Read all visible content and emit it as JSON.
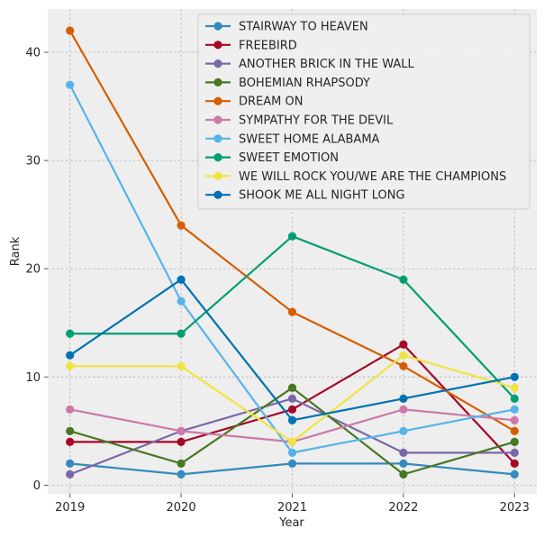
{
  "chart_data": {
    "type": "line",
    "xlabel": "Year",
    "ylabel": "Rank",
    "x": [
      2019,
      2020,
      2021,
      2022,
      2023
    ],
    "xlim": [
      2018.8,
      2023.2
    ],
    "ylim": [
      -0.8,
      44
    ],
    "yticks": [
      0,
      10,
      20,
      30,
      40
    ],
    "grid": true,
    "legend_position": "top-right",
    "series": [
      {
        "name": "STAIRWAY TO HEAVEN",
        "color": "#348ABD",
        "values": [
          2,
          1,
          2,
          2,
          1
        ]
      },
      {
        "name": "FREEBIRD",
        "color": "#A60628",
        "values": [
          4,
          4,
          7,
          13,
          2
        ]
      },
      {
        "name": "ANOTHER BRICK IN THE WALL",
        "color": "#7A68A6",
        "values": [
          1,
          5,
          8,
          3,
          3
        ]
      },
      {
        "name": "BOHEMIAN RHAPSODY",
        "color": "#467821",
        "values": [
          5,
          2,
          9,
          1,
          4
        ]
      },
      {
        "name": "DREAM ON",
        "color": "#D55E00",
        "values": [
          42,
          24,
          16,
          11,
          5
        ]
      },
      {
        "name": "SYMPATHY FOR THE DEVIL",
        "color": "#CC79A7",
        "values": [
          7,
          5,
          4,
          7,
          6
        ]
      },
      {
        "name": "SWEET HOME ALABAMA",
        "color": "#56B4E9",
        "values": [
          37,
          17,
          3,
          5,
          7
        ]
      },
      {
        "name": "SWEET EMOTION",
        "color": "#009E73",
        "values": [
          14,
          14,
          23,
          19,
          8
        ]
      },
      {
        "name": "WE WILL ROCK YOU/WE ARE THE CHAMPIONS",
        "color": "#F0E442",
        "values": [
          11,
          11,
          4,
          12,
          9
        ]
      },
      {
        "name": "SHOOK ME ALL NIGHT LONG",
        "color": "#0072B2",
        "values": [
          12,
          19,
          6,
          8,
          10
        ]
      }
    ]
  }
}
